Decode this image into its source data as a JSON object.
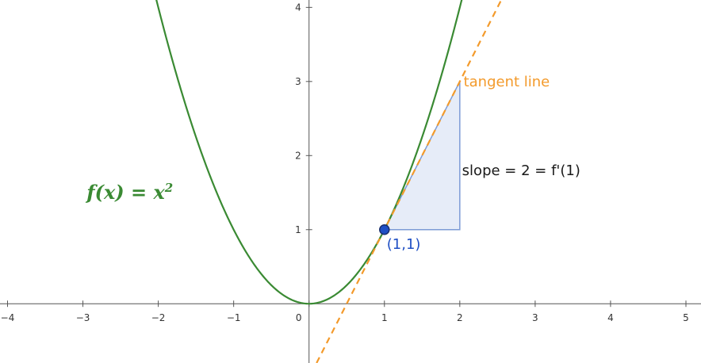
{
  "chart_data": {
    "type": "line",
    "xlim": [
      -4.1,
      5.2
    ],
    "ylim": [
      -0.8,
      4.1
    ],
    "x_ticks": [
      -4,
      -3,
      -2,
      -1,
      0,
      1,
      2,
      3,
      4,
      5
    ],
    "y_ticks": [
      1,
      2,
      3,
      4
    ],
    "grid": false,
    "series": [
      {
        "kind": "function",
        "expression": "x^2",
        "color": "#3a8a33"
      },
      {
        "kind": "tangent",
        "point": [
          1,
          1
        ],
        "slope": 2,
        "color": "#f39a2b",
        "dashed": true
      }
    ],
    "point": {
      "x": 1,
      "y": 1,
      "label": "(1,1)",
      "color": "#1f4fc4"
    },
    "slope_triangle": {
      "from": [
        1,
        1
      ],
      "to": [
        2,
        3
      ],
      "fill": "#e6ecf8",
      "stroke": "#7c9bd6"
    },
    "annotations": {
      "function_label": {
        "base": "f(x) = x",
        "exponent": "2",
        "color": "#3a8a33"
      },
      "tangent_label": {
        "text": "tangent line",
        "color": "#f39a2b"
      },
      "slope_label": {
        "text": "slope = 2 = f'(1)",
        "color": "#1a1a1a"
      }
    }
  }
}
